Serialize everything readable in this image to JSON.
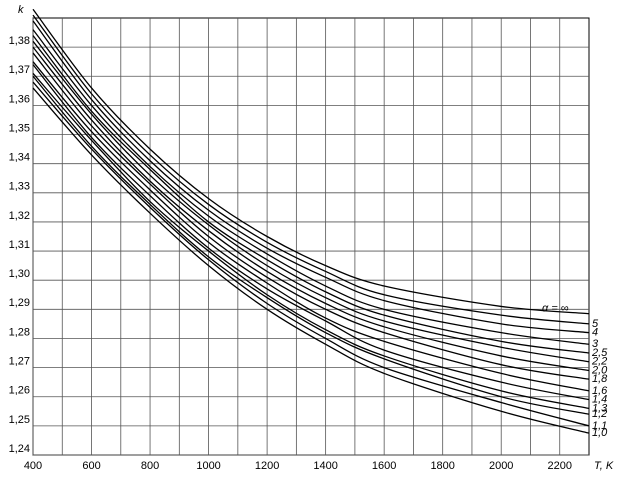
{
  "chart_data": {
    "type": "line",
    "y_label": "k",
    "x_label": "T, K",
    "x": [
      400,
      600,
      800,
      1000,
      1200,
      1400,
      1600,
      2000,
      2300
    ],
    "color": "#000000",
    "series": [
      {
        "name": "α = ∞",
        "values": [
          1.393,
          1.366,
          1.345,
          1.328,
          1.315,
          1.305,
          1.298,
          1.291,
          1.2885
        ]
      },
      {
        "name": "5",
        "values": [
          1.391,
          1.364,
          1.343,
          1.326,
          1.313,
          1.303,
          1.295,
          1.288,
          1.285
        ]
      },
      {
        "name": "4",
        "values": [
          1.389,
          1.362,
          1.341,
          1.324,
          1.311,
          1.301,
          1.293,
          1.285,
          1.282
        ]
      },
      {
        "name": "3",
        "values": [
          1.386,
          1.36,
          1.339,
          1.322,
          1.309,
          1.298,
          1.29,
          1.282,
          1.278
        ]
      },
      {
        "name": "2,5",
        "values": [
          1.384,
          1.358,
          1.338,
          1.32,
          1.307,
          1.296,
          1.288,
          1.279,
          1.275
        ]
      },
      {
        "name": "2,2",
        "values": [
          1.382,
          1.357,
          1.336,
          1.319,
          1.305,
          1.294,
          1.286,
          1.277,
          1.272
        ]
      },
      {
        "name": "2,0",
        "values": [
          1.38,
          1.355,
          1.334,
          1.317,
          1.303,
          1.292,
          1.284,
          1.274,
          1.269
        ]
      },
      {
        "name": "1,8",
        "values": [
          1.378,
          1.353,
          1.333,
          1.315,
          1.301,
          1.29,
          1.282,
          1.271,
          1.266
        ]
      },
      {
        "name": "1,6",
        "values": [
          1.375,
          1.351,
          1.331,
          1.313,
          1.299,
          1.287,
          1.279,
          1.268,
          1.262
        ]
      },
      {
        "name": "1,4",
        "values": [
          1.374,
          1.349,
          1.329,
          1.311,
          1.297,
          1.286,
          1.276,
          1.265,
          1.259
        ]
      },
      {
        "name": "1,3",
        "values": [
          1.371,
          1.348,
          1.327,
          1.31,
          1.295,
          1.283,
          1.274,
          1.262,
          1.256
        ]
      },
      {
        "name": "1,2",
        "values": [
          1.37,
          1.346,
          1.326,
          1.308,
          1.294,
          1.282,
          1.273,
          1.26,
          1.254
        ]
      },
      {
        "name": "1,1",
        "values": [
          1.368,
          1.345,
          1.325,
          1.307,
          1.292,
          1.28,
          1.27,
          1.258,
          1.25
        ]
      },
      {
        "name": "1,0",
        "values": [
          1.366,
          1.343,
          1.323,
          1.305,
          1.29,
          1.278,
          1.268,
          1.255,
          1.2475
        ]
      }
    ],
    "xlim": [
      400,
      2300
    ],
    "xticks": [
      400,
      600,
      800,
      1000,
      1200,
      1400,
      1600,
      1800,
      2000,
      2200
    ],
    "ylim": [
      1.24,
      1.39
    ],
    "yticks": [
      {
        "value": 1.24,
        "label": "1,24"
      },
      {
        "value": 1.25,
        "label": "1,25"
      },
      {
        "value": 1.26,
        "label": "1,26"
      },
      {
        "value": 1.27,
        "label": "1,27"
      },
      {
        "value": 1.28,
        "label": "1,28"
      },
      {
        "value": 1.29,
        "label": "1,29"
      },
      {
        "value": 1.3,
        "label": "1,30"
      },
      {
        "value": 1.31,
        "label": "1,31"
      },
      {
        "value": 1.32,
        "label": "1,32"
      },
      {
        "value": 1.33,
        "label": "1,33"
      },
      {
        "value": 1.34,
        "label": "1,34"
      },
      {
        "value": 1.35,
        "label": "1,35"
      },
      {
        "value": 1.36,
        "label": "1,36"
      },
      {
        "value": 1.37,
        "label": "1,37"
      },
      {
        "value": 1.38,
        "label": "1,38"
      }
    ],
    "grid": true
  }
}
